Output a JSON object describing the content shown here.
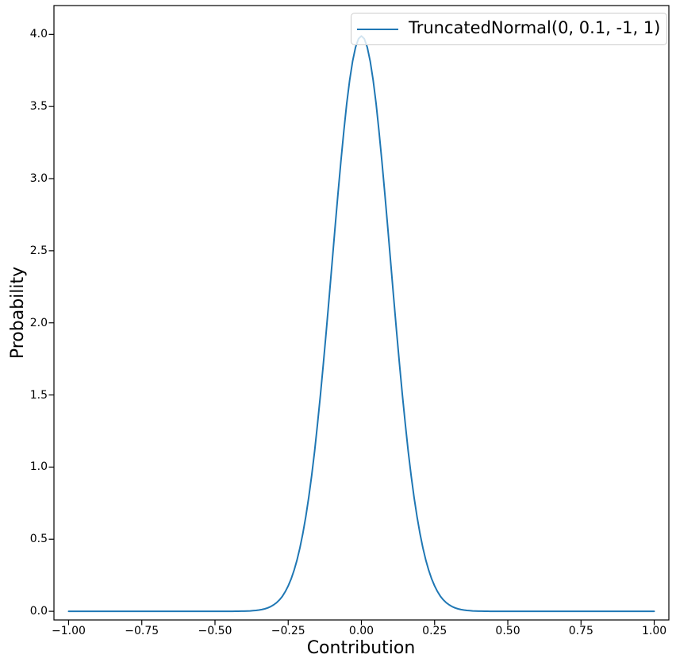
{
  "chart_data": {
    "type": "line",
    "title": "",
    "xlabel": "Contribution",
    "ylabel": "Probability",
    "xlim": [
      -1.05,
      1.05
    ],
    "ylim": [
      -0.06,
      4.2
    ],
    "grid": false,
    "xticks": [
      -1.0,
      -0.75,
      -0.5,
      -0.25,
      0.0,
      0.25,
      0.5,
      0.75,
      1.0
    ],
    "xtick_labels": [
      "−1.00",
      "−0.75",
      "−0.50",
      "−0.25",
      "0.00",
      "0.25",
      "0.50",
      "0.75",
      "1.00"
    ],
    "yticks": [
      0.0,
      0.5,
      1.0,
      1.5,
      2.0,
      2.5,
      3.0,
      3.5,
      4.0
    ],
    "ytick_labels": [
      "0.0",
      "0.5",
      "1.0",
      "1.5",
      "2.0",
      "2.5",
      "3.0",
      "3.5",
      "4.0"
    ],
    "legend": {
      "position": "upper-right",
      "entries": [
        {
          "label": "TruncatedNormal(0, 0.1, -1, 1)",
          "color": "#1f77b4"
        }
      ]
    },
    "series": [
      {
        "name": "TruncatedNormal(0, 0.1, -1, 1)",
        "color": "#1f77b4",
        "distribution": {
          "family": "TruncatedNormal",
          "mu": 0,
          "sigma": 0.1,
          "low": -1,
          "high": 1,
          "peak_density": 3.9894
        },
        "x": [
          -1.0,
          -0.5,
          -0.49,
          -0.48,
          -0.47,
          -0.46,
          -0.45,
          -0.44,
          -0.43,
          -0.42,
          -0.41,
          -0.4,
          -0.39,
          -0.38,
          -0.37,
          -0.36,
          -0.35,
          -0.34,
          -0.33,
          -0.32,
          -0.31,
          -0.3,
          -0.29,
          -0.28,
          -0.27,
          -0.26,
          -0.25,
          -0.24,
          -0.23,
          -0.22,
          -0.21,
          -0.2,
          -0.19,
          -0.18,
          -0.17,
          -0.16,
          -0.15,
          -0.14,
          -0.13,
          -0.12,
          -0.11,
          -0.1,
          -0.09,
          -0.08,
          -0.07,
          -0.06,
          -0.05,
          -0.04,
          -0.03,
          -0.02,
          -0.01,
          0.0,
          0.01,
          0.02,
          0.03,
          0.04,
          0.05,
          0.06,
          0.07,
          0.08,
          0.09,
          0.1,
          0.11,
          0.12,
          0.13,
          0.14,
          0.15,
          0.16,
          0.17,
          0.18,
          0.19,
          0.2,
          0.21,
          0.22,
          0.23,
          0.24,
          0.25,
          0.26,
          0.27,
          0.28,
          0.29,
          0.3,
          0.31,
          0.32,
          0.33,
          0.34,
          0.35,
          0.36,
          0.37,
          0.38,
          0.39,
          0.4,
          0.41,
          0.42,
          0.43,
          0.44,
          0.45,
          0.46,
          0.47,
          0.48,
          0.49,
          0.5,
          1.0
        ],
        "y": [
          0.0,
          0.0,
          0.0,
          0.0,
          0.0001,
          0.0001,
          0.0002,
          0.0002,
          0.0004,
          0.0006,
          0.0009,
          0.0013,
          0.002,
          0.0029,
          0.0042,
          0.0061,
          0.0087,
          0.0123,
          0.0172,
          0.0238,
          0.0327,
          0.0443,
          0.0595,
          0.0792,
          0.1042,
          0.1358,
          0.1753,
          0.224,
          0.2833,
          0.3547,
          0.4398,
          0.5399,
          0.6561,
          0.7895,
          0.9405,
          1.1092,
          1.2952,
          1.4973,
          1.7137,
          1.9419,
          2.1785,
          2.4197,
          2.6609,
          2.8967,
          3.1225,
          3.3322,
          3.5206,
          3.6827,
          3.8139,
          3.9104,
          3.9695,
          3.9894,
          3.9695,
          3.9104,
          3.8139,
          3.6827,
          3.5206,
          3.3322,
          3.1225,
          2.8967,
          2.6609,
          2.4197,
          2.1785,
          1.9419,
          1.7137,
          1.4973,
          1.2952,
          1.1092,
          0.9405,
          0.7895,
          0.6561,
          0.5399,
          0.4398,
          0.3547,
          0.2833,
          0.224,
          0.1753,
          0.1358,
          0.1042,
          0.0792,
          0.0595,
          0.0443,
          0.0327,
          0.0238,
          0.0172,
          0.0123,
          0.0087,
          0.0061,
          0.0042,
          0.0029,
          0.002,
          0.0013,
          0.0009,
          0.0006,
          0.0004,
          0.0002,
          0.0002,
          0.0001,
          0.0001,
          0.0,
          0.0,
          0.0,
          0.0
        ]
      }
    ],
    "colors": {
      "line": "#1f77b4",
      "spine": "#000000",
      "legend_border": "#cccccc"
    }
  }
}
